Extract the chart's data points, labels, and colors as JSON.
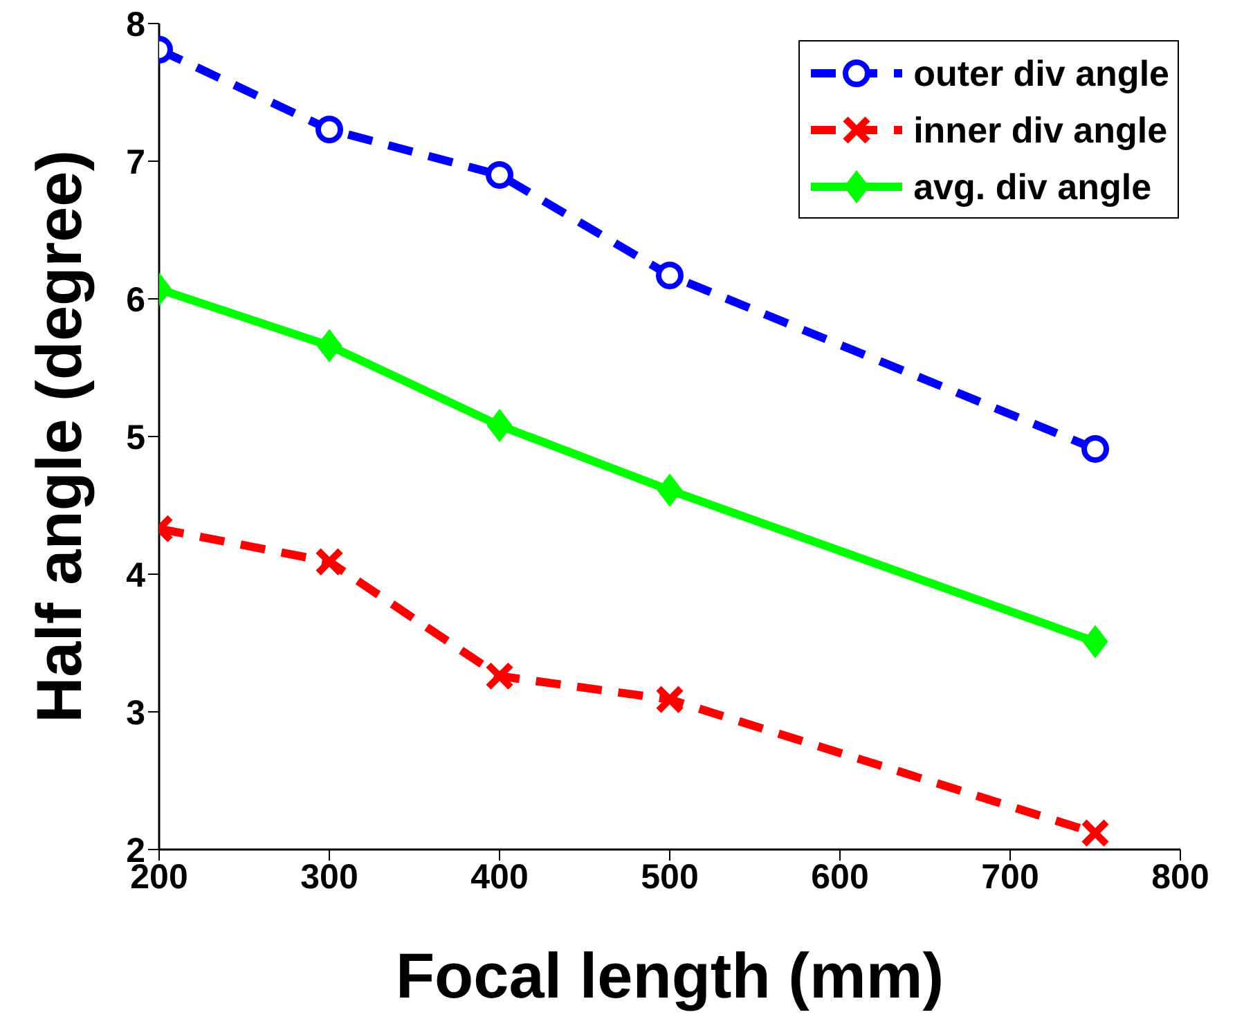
{
  "chart_data": {
    "type": "line",
    "xlabel": "Focal length (mm)",
    "ylabel": "Half angle (degree)",
    "x": [
      200,
      300,
      400,
      500,
      750
    ],
    "xlim": [
      200,
      800
    ],
    "xticks": [
      200,
      300,
      400,
      500,
      600,
      700,
      800
    ],
    "ylim": [
      2,
      8
    ],
    "yticks": [
      2,
      3,
      4,
      5,
      6,
      7,
      8
    ],
    "grid": false,
    "legend": "top right",
    "series": [
      {
        "name": "outer div angle",
        "color": "#0000ff",
        "values": [
          7.81,
          7.23,
          6.9,
          6.17,
          4.91
        ],
        "marker": "circle",
        "line_style": "dashed"
      },
      {
        "name": "inner div angle",
        "color": "#ff0000",
        "values": [
          4.33,
          4.09,
          3.26,
          3.09,
          2.12
        ],
        "marker": "cross",
        "line_style": "dashed"
      },
      {
        "name": "avg. div angle",
        "color": "#00ff00",
        "values": [
          6.07,
          5.66,
          5.08,
          4.61,
          3.51
        ],
        "marker": "diamond",
        "line_style": "solid"
      }
    ]
  }
}
